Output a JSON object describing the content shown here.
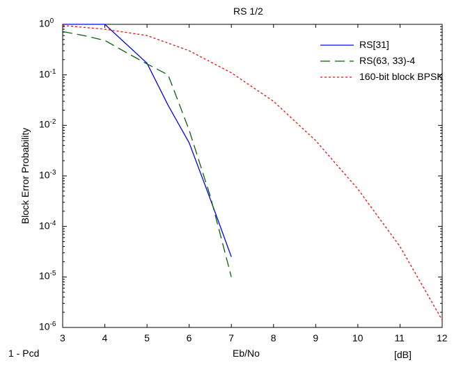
{
  "chart_data": {
    "type": "line",
    "title": "RS 1/2",
    "xlabel": "Eb/No",
    "ylabel": "Block Error Probability",
    "x_unit_label": "[dB]",
    "corner_label": "1 - Pcd",
    "xlim": [
      3,
      12
    ],
    "ylim": [
      1e-06,
      1
    ],
    "yscale": "log",
    "grid": false,
    "legend_position": "top-right",
    "x_ticks": [
      "3",
      "4",
      "5",
      "6",
      "7",
      "8",
      "9",
      "10",
      "11",
      "12"
    ],
    "y_ticks": [
      {
        "base": "10",
        "exp": "0",
        "value": 1
      },
      {
        "base": "10",
        "exp": "-1",
        "value": 0.1
      },
      {
        "base": "10",
        "exp": "-2",
        "value": 0.01
      },
      {
        "base": "10",
        "exp": "-3",
        "value": 0.001
      },
      {
        "base": "10",
        "exp": "-4",
        "value": 0.0001
      },
      {
        "base": "10",
        "exp": "-5",
        "value": 1e-05
      },
      {
        "base": "10",
        "exp": "-6",
        "value": 1e-06
      }
    ],
    "series": [
      {
        "name": "RS[31]",
        "color": "#0000ff",
        "dash": "solid",
        "x": [
          3,
          4,
          5,
          5.5,
          6,
          6.5,
          7
        ],
        "y": [
          1.0,
          1.0,
          0.17,
          0.025,
          0.0045,
          0.00035,
          2.5e-05
        ]
      },
      {
        "name": "RS(63, 33)-4",
        "color": "#006400",
        "dash": "long-dash",
        "x": [
          3,
          3.5,
          4,
          4.5,
          5,
          5.5,
          6,
          6.5,
          7
        ],
        "y": [
          0.72,
          0.6,
          0.48,
          0.28,
          0.165,
          0.1,
          0.008,
          0.0004,
          1e-05
        ]
      },
      {
        "name": "160-bit block BPSK",
        "color": "#ff0000",
        "dash": "dotted",
        "x": [
          3,
          4,
          5,
          6,
          7,
          8,
          9,
          10,
          11,
          12
        ],
        "y": [
          0.95,
          0.8,
          0.6,
          0.3,
          0.11,
          0.03,
          0.005,
          0.00055,
          4e-05,
          1.4e-06
        ]
      }
    ]
  }
}
